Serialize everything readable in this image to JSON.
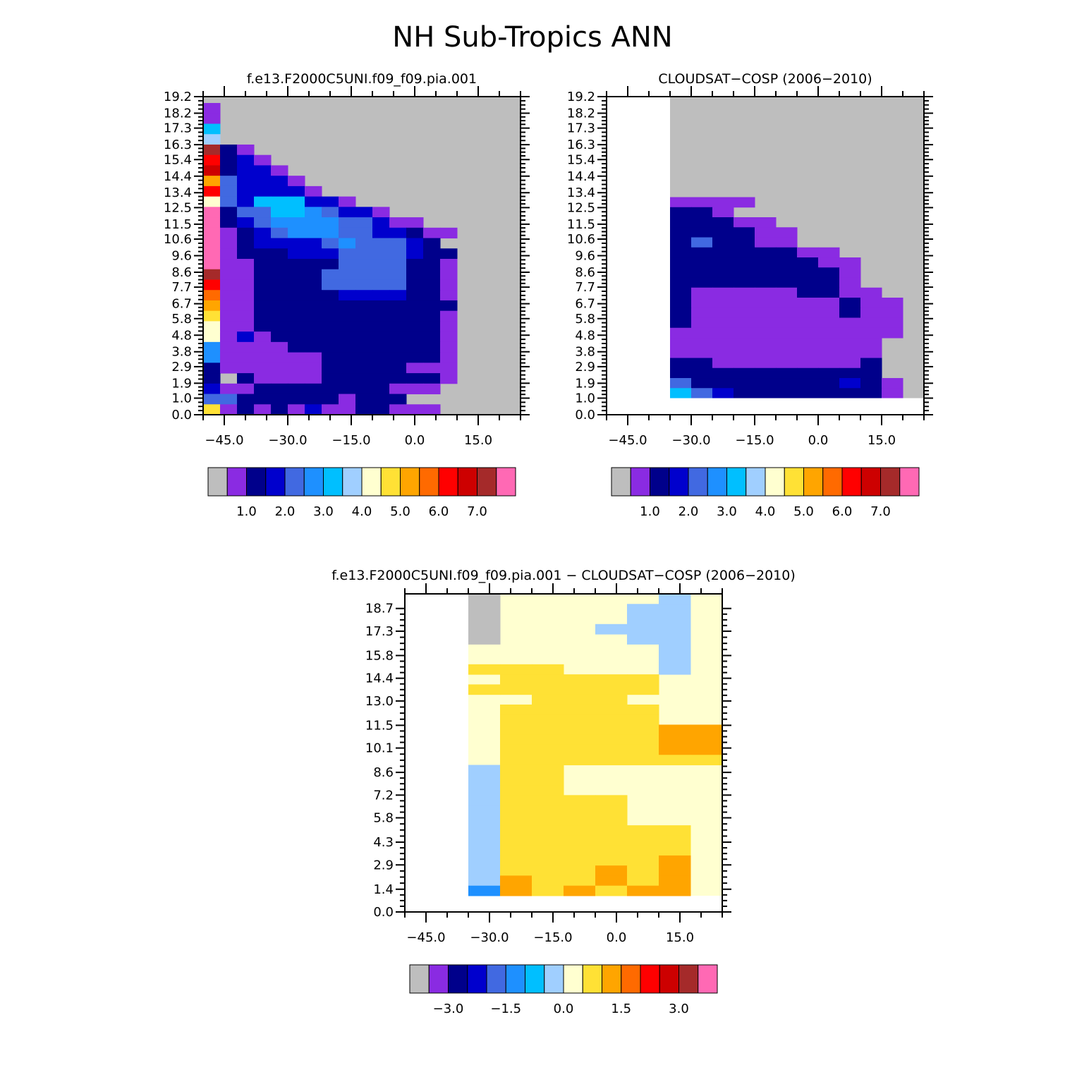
{
  "title": "NH Sub-Tropics ANN",
  "chart_data": [
    {
      "type": "heatmap",
      "title": "f.e13.F2000C5UNI.f09_f09.pia.001",
      "xlabel": "",
      "ylabel": "",
      "xlim": [
        -50,
        25
      ],
      "ylim": [
        0.0,
        19.2
      ],
      "xticks": [
        -45.0,
        -30.0,
        -15.0,
        0.0,
        15.0
      ],
      "xtick_labels": [
        "−45.0",
        "−30.0",
        "−15.0",
        "0.0",
        "15.0"
      ],
      "yticks": [
        0.0,
        1.0,
        1.9,
        2.9,
        3.8,
        4.8,
        5.8,
        6.7,
        7.7,
        8.6,
        9.6,
        10.6,
        11.5,
        12.5,
        13.4,
        14.4,
        15.4,
        16.3,
        17.3,
        18.2,
        19.2
      ],
      "ytick_labels": [
        "0.0",
        "1.0",
        "1.9",
        "2.9",
        "3.8",
        "4.8",
        "5.8",
        "6.7",
        "7.7",
        "8.6",
        "9.6",
        "10.6",
        "11.5",
        "12.5",
        "13.4",
        "14.4",
        "15.4",
        "16.3",
        "17.3",
        "18.2",
        "19.2"
      ],
      "colorbar": {
        "colors": [
          "#bebebe",
          "#8a2be2",
          "#00008b",
          "#0000cd",
          "#4169e1",
          "#1e90ff",
          "#00bfff",
          "#a0cfff",
          "#ffffd0",
          "#ffe135",
          "#ffa500",
          "#ff6a00",
          "#ff0000",
          "#cd0000",
          "#a52a2a",
          "#ff69b4"
        ],
        "ticks": [
          1.0,
          2.0,
          3.0,
          4.0,
          5.0,
          6.0,
          7.0
        ],
        "tick_labels": [
          "1.0",
          "2.0",
          "3.0",
          "4.0",
          "5.0",
          "6.0",
          "7.0"
        ],
        "tick_boundaries": [
          2,
          4,
          6,
          8,
          10,
          12,
          14
        ]
      }
    },
    {
      "type": "heatmap",
      "title": "CLOUDSAT−COSP (2006−2010)",
      "xlabel": "",
      "ylabel": "",
      "xlim": [
        -50,
        25
      ],
      "ylim": [
        0.0,
        19.2
      ],
      "data_extent": {
        "x": [
          -35,
          25
        ],
        "y": [
          1.0,
          19.2
        ]
      },
      "xticks": [
        -45.0,
        -30.0,
        -15.0,
        0.0,
        15.0
      ],
      "xtick_labels": [
        "−45.0",
        "−30.0",
        "−15.0",
        "0.0",
        "15.0"
      ],
      "yticks": [
        0.0,
        1.0,
        1.9,
        2.9,
        3.8,
        4.8,
        5.8,
        6.7,
        7.7,
        8.6,
        9.6,
        10.6,
        11.5,
        12.5,
        13.4,
        14.4,
        15.4,
        16.3,
        17.3,
        18.2,
        19.2
      ],
      "ytick_labels": [
        "0.0",
        "1.0",
        "1.9",
        "2.9",
        "3.8",
        "4.8",
        "5.8",
        "6.7",
        "7.7",
        "8.6",
        "9.6",
        "10.6",
        "11.5",
        "12.5",
        "13.4",
        "14.4",
        "15.4",
        "16.3",
        "17.3",
        "18.2",
        "19.2"
      ],
      "colorbar": {
        "colors": [
          "#bebebe",
          "#8a2be2",
          "#00008b",
          "#0000cd",
          "#4169e1",
          "#1e90ff",
          "#00bfff",
          "#a0cfff",
          "#ffffd0",
          "#ffe135",
          "#ffa500",
          "#ff6a00",
          "#ff0000",
          "#cd0000",
          "#a52a2a",
          "#ff69b4"
        ],
        "ticks": [
          1.0,
          2.0,
          3.0,
          4.0,
          5.0,
          6.0,
          7.0
        ],
        "tick_labels": [
          "1.0",
          "2.0",
          "3.0",
          "4.0",
          "5.0",
          "6.0",
          "7.0"
        ],
        "tick_boundaries": [
          2,
          4,
          6,
          8,
          10,
          12,
          14
        ]
      }
    },
    {
      "type": "heatmap",
      "title": "f.e13.F2000C5UNI.f09_f09.pia.001 − CLOUDSAT−COSP (2006−2010)",
      "xlabel": "",
      "ylabel": "",
      "xlim": [
        -50,
        25
      ],
      "ylim": [
        0.0,
        19.6
      ],
      "data_extent": {
        "x": [
          -35,
          25
        ],
        "y": [
          1.0,
          19.6
        ]
      },
      "xticks": [
        -45.0,
        -30.0,
        -15.0,
        0.0,
        15.0
      ],
      "xtick_labels": [
        "−45.0",
        "−30.0",
        "−15.0",
        "0.0",
        "15.0"
      ],
      "yticks": [
        0.0,
        1.4,
        2.9,
        4.3,
        5.8,
        7.2,
        8.6,
        10.1,
        11.5,
        13.0,
        14.4,
        15.8,
        17.3,
        18.7
      ],
      "ytick_labels": [
        "0.0",
        "1.4",
        "2.9",
        "4.3",
        "5.8",
        "7.2",
        "8.6",
        "10.1",
        "11.5",
        "13.0",
        "14.4",
        "15.8",
        "17.3",
        "18.7"
      ],
      "colorbar": {
        "colors": [
          "#bebebe",
          "#8a2be2",
          "#00008b",
          "#0000cd",
          "#4169e1",
          "#1e90ff",
          "#00bfff",
          "#a0cfff",
          "#ffffd0",
          "#ffe135",
          "#ffa500",
          "#ff6a00",
          "#ff0000",
          "#cd0000",
          "#a52a2a",
          "#ff69b4"
        ],
        "ticks": [
          -3.0,
          -1.5,
          0.0,
          1.5,
          3.0
        ],
        "tick_labels": [
          "−3.0",
          "−1.5",
          "0.0",
          "1.5",
          "3.0"
        ],
        "tick_boundaries": [
          2,
          5,
          8,
          11,
          14
        ]
      }
    }
  ]
}
